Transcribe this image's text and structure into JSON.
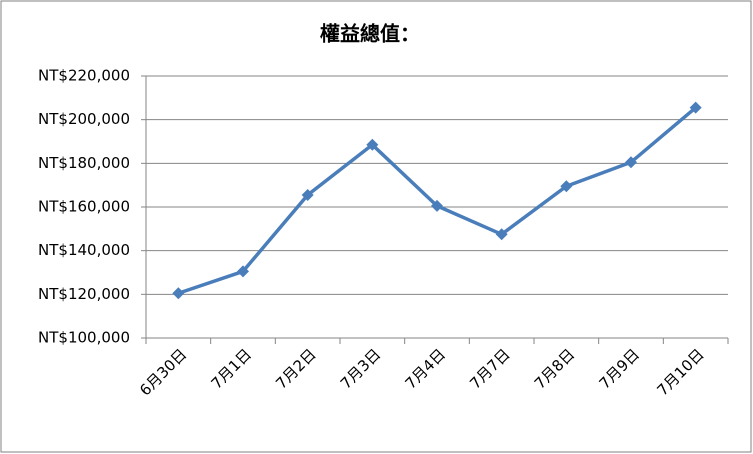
{
  "chart_data": {
    "type": "line",
    "title": "權益總值：",
    "categories": [
      "6月30日",
      "7月1日",
      "7月2日",
      "7月3日",
      "7月4日",
      "7月7日",
      "7月8日",
      "7月9日",
      "7月10日"
    ],
    "series": [
      {
        "color": "#4a7ebb",
        "values": [
          120500,
          130500,
          165500,
          188500,
          160500,
          147500,
          169500,
          180500,
          205500
        ]
      }
    ],
    "ylim": [
      100000,
      220000
    ],
    "yticks": [
      {
        "value": 100000,
        "label": "NT$100,000"
      },
      {
        "value": 120000,
        "label": "NT$120,000"
      },
      {
        "value": 140000,
        "label": "NT$140,000"
      },
      {
        "value": 160000,
        "label": "NT$160,000"
      },
      {
        "value": 180000,
        "label": "NT$180,000"
      },
      {
        "value": 200000,
        "label": "NT$200,000"
      },
      {
        "value": 220000,
        "label": "NT$220,000"
      }
    ],
    "grid": true
  }
}
